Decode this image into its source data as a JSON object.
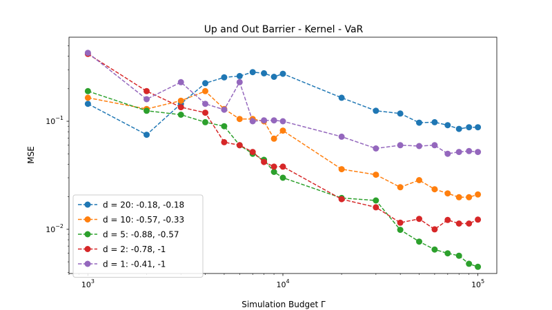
{
  "chart_data": {
    "type": "line",
    "title": "Up and Out Barrier - Kernel - VaR",
    "xlabel": "Simulation Budget Γ",
    "ylabel": "MSE",
    "xscale": "log",
    "yscale": "log",
    "xlim": [
      800,
      125000
    ],
    "ylim": [
      0.0039,
      0.6
    ],
    "x_ticks": [
      {
        "value": 1000,
        "base": "10",
        "exp": "3"
      },
      {
        "value": 10000,
        "base": "10",
        "exp": "4"
      },
      {
        "value": 100000,
        "base": "10",
        "exp": "5"
      }
    ],
    "y_ticks": [
      {
        "value": 0.01,
        "base": "10",
        "exp": "−2"
      },
      {
        "value": 0.1,
        "base": "10",
        "exp": "−1"
      }
    ],
    "grid": false,
    "legend_position": "lower-left",
    "x": [
      1000,
      2000,
      3000,
      4000,
      5000,
      6000,
      7000,
      8000,
      9000,
      10000,
      20000,
      30000,
      40000,
      50000,
      60000,
      70000,
      80000,
      90000,
      100000
    ],
    "series": [
      {
        "name": "d = 20: -0.18, -0.18",
        "color": "#1f77b4",
        "values": [
          0.145,
          0.075,
          0.145,
          0.225,
          0.255,
          0.262,
          0.285,
          0.278,
          0.258,
          0.275,
          0.165,
          0.125,
          0.118,
          0.097,
          0.098,
          0.092,
          0.085,
          0.088,
          0.088
        ]
      },
      {
        "name": "d = 10: -0.57, -0.33",
        "color": "#ff7f0e",
        "values": [
          0.165,
          0.13,
          0.155,
          0.19,
          0.13,
          0.105,
          0.105,
          0.1,
          0.069,
          0.082,
          0.036,
          0.032,
          0.0245,
          0.0285,
          0.0235,
          0.0215,
          0.0198,
          0.0198,
          0.021
        ]
      },
      {
        "name": "d = 5: -0.88, -0.57",
        "color": "#2ca02c",
        "values": [
          0.19,
          0.125,
          0.115,
          0.098,
          0.09,
          0.06,
          0.05,
          0.044,
          0.034,
          0.03,
          0.0195,
          0.0185,
          0.0099,
          0.0077,
          0.0065,
          0.006,
          0.0057,
          0.0048,
          0.0045
        ]
      },
      {
        "name": "d = 2: -0.78, -1",
        "color": "#d62728",
        "values": [
          0.42,
          0.19,
          0.135,
          0.12,
          0.064,
          0.06,
          0.052,
          0.042,
          0.038,
          0.038,
          0.019,
          0.016,
          0.0115,
          0.0125,
          0.01,
          0.0122,
          0.0113,
          0.0113,
          0.0123
        ]
      },
      {
        "name": "d = 1: -0.41, -1",
        "color": "#9467bd",
        "values": [
          0.43,
          0.16,
          0.23,
          0.145,
          0.128,
          0.23,
          0.1,
          0.102,
          0.102,
          0.1,
          0.072,
          0.056,
          0.06,
          0.059,
          0.06,
          0.05,
          0.052,
          0.053,
          0.052
        ]
      }
    ]
  }
}
